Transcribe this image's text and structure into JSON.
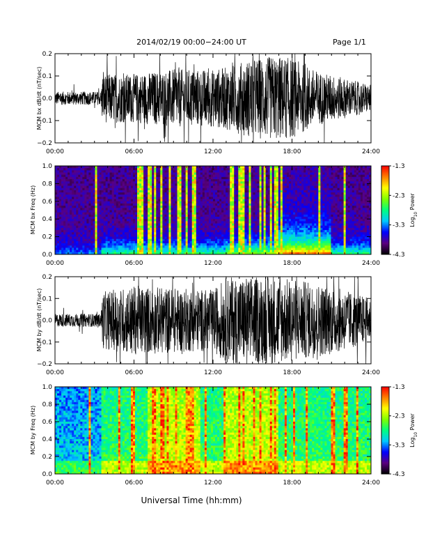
{
  "header": {
    "date_range": "2014/02/19  00:00−24:00 UT",
    "page": "Page 1/1"
  },
  "x_axis": {
    "label": "Universal Time (hh:mm)",
    "ticks": [
      "00:00",
      "06:00",
      "12:00",
      "18:00",
      "24:00"
    ],
    "range_hours": [
      0,
      24
    ]
  },
  "colorbar": {
    "ticks": [
      "-1.3",
      "-2.3",
      "-3.3",
      "-4.3"
    ],
    "range": [
      -4.3,
      -1.3
    ],
    "label_main": "Log",
    "label_sub": "10",
    "label_rest": " Power",
    "colors": [
      "#000000",
      "#5a0080",
      "#0000ff",
      "#00c8ff",
      "#00ff80",
      "#80ff00",
      "#ffff00",
      "#ff8000",
      "#ff0000"
    ]
  },
  "chart_data": [
    {
      "type": "line",
      "ylabel": "MCM bx dB/dt (nT/sec)",
      "ylim": [
        -0.2,
        0.2
      ],
      "yticks": [
        "0.2",
        "0.1",
        "0.0",
        "−0.1",
        "−0.2"
      ],
      "x_unit": "hours UT",
      "amplitude_envelope": {
        "x": [
          0,
          3.5,
          3.6,
          6,
          9,
          12,
          13,
          15,
          17,
          18,
          20,
          22,
          24
        ],
        "y": [
          0.03,
          0.03,
          0.11,
          0.11,
          0.13,
          0.13,
          0.14,
          0.18,
          0.19,
          0.18,
          0.12,
          0.09,
          0.06
        ]
      }
    },
    {
      "type": "heatmap",
      "ylabel": "MCM bx Freq (Hz)",
      "ylim": [
        0,
        1
      ],
      "yticks": [
        "1.0",
        "0.8",
        "0.6",
        "0.4",
        "0.2",
        "0.0"
      ],
      "zlim": [
        -4.3,
        -1.3
      ]
    },
    {
      "type": "line",
      "ylabel": "MCM by dB/dt (nT/sec)",
      "ylim": [
        -0.2,
        0.2
      ],
      "yticks": [
        "0.2",
        "0.1",
        "0.0",
        "−0.1",
        "−0.2"
      ],
      "x_unit": "hours UT",
      "amplitude_envelope": {
        "x": [
          0,
          3.5,
          3.6,
          6,
          9,
          12,
          13,
          15,
          17,
          18,
          20,
          22,
          24
        ],
        "y": [
          0.03,
          0.03,
          0.13,
          0.16,
          0.15,
          0.14,
          0.2,
          0.2,
          0.2,
          0.19,
          0.17,
          0.14,
          0.1
        ]
      }
    },
    {
      "type": "heatmap",
      "ylabel": "MCM by Freq (Hz)",
      "ylim": [
        0,
        1
      ],
      "yticks": [
        "1.0",
        "0.8",
        "0.6",
        "0.4",
        "0.2",
        "0.0"
      ],
      "zlim": [
        -4.3,
        -1.3
      ]
    }
  ]
}
